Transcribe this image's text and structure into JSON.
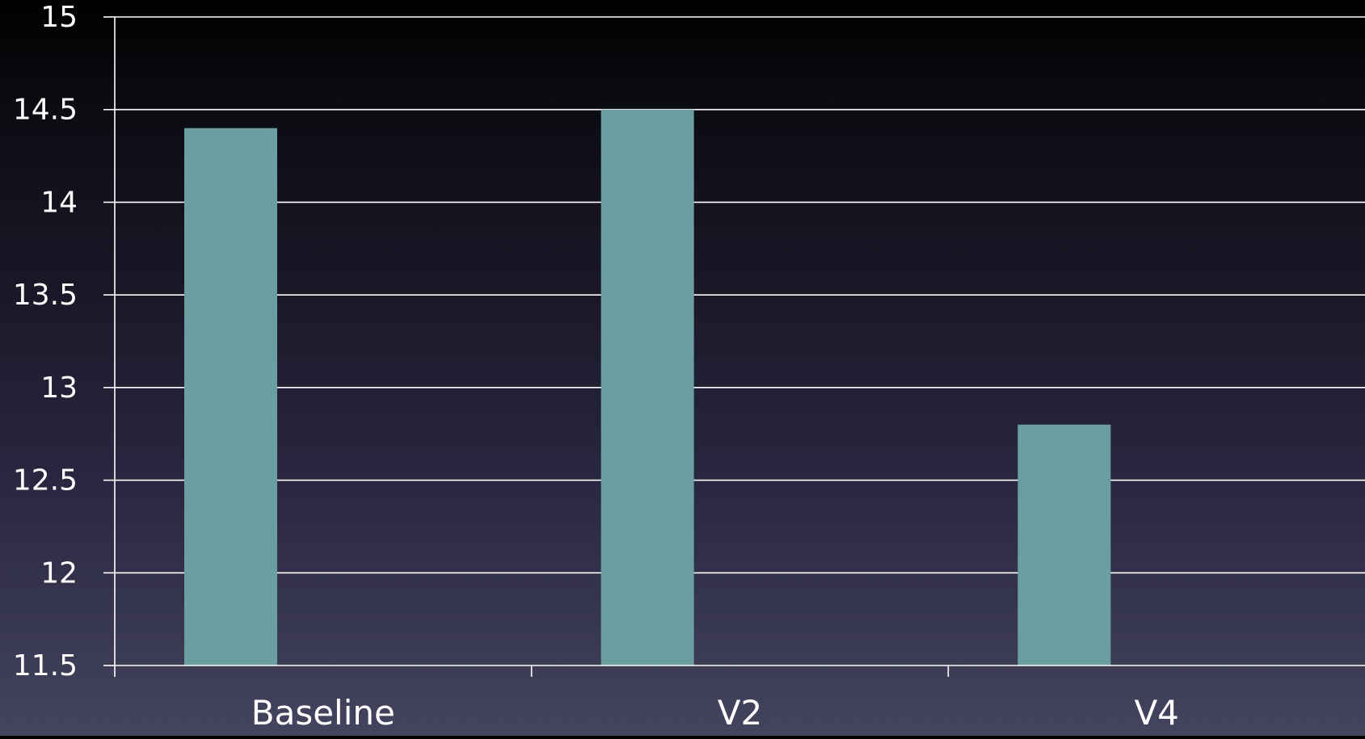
{
  "chart_data": {
    "type": "bar",
    "categories": [
      "Baseline",
      "V2",
      "V4"
    ],
    "values": [
      14.4,
      14.5,
      12.8
    ],
    "ylim": [
      11.5,
      15
    ],
    "yticks": [
      "11.5",
      "12",
      "12.5",
      "13",
      "13.5",
      "14",
      "14.5",
      "15"
    ],
    "grid": true,
    "colors": {
      "bar": "#6b9ea0",
      "grid": "#ffffff",
      "text": "#ffffff"
    }
  }
}
